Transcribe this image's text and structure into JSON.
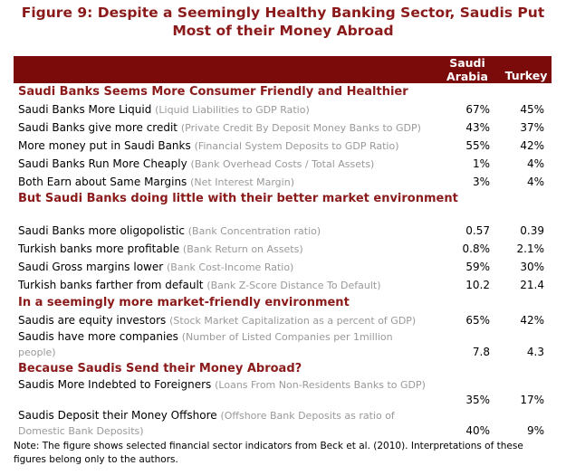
{
  "title": "Figure 9: Despite a Seemingly Healthy Banking Sector, Saudis Put Most of their Money Abroad",
  "columns": [
    "Saudi Arabia",
    "Turkey"
  ],
  "sections": [
    {
      "heading": "Saudi Banks Seems More Consumer Friendly and Healthier",
      "rows": [
        {
          "label": "Saudi Banks More Liquid",
          "note": "(Liquid Liabilities to GDP Ratio)",
          "saudi": "67%",
          "turkey": "45%"
        },
        {
          "label": "Saudi Banks give more credit",
          "note": "(Private Credit By Deposit Money Banks to GDP)",
          "saudi": "43%",
          "turkey": "37%"
        },
        {
          "label": "More money put in Saudi Banks",
          "note": "(Financial System Deposits to GDP Ratio)",
          "saudi": "55%",
          "turkey": "42%"
        },
        {
          "label": "Saudi Banks Run More Cheaply",
          "note": "(Bank Overhead Costs / Total Assets)",
          "saudi": "1%",
          "turkey": "4%"
        },
        {
          "label": "Both Earn about Same Margins",
          "note": "(Net Interest Margin)",
          "saudi": "3%",
          "turkey": "4%"
        }
      ]
    },
    {
      "heading": "But Saudi Banks doing little with their better market environment",
      "rows": [
        {
          "label": "Saudi Banks more oligopolistic",
          "note": "(Bank Concentration ratio)",
          "saudi": "0.57",
          "turkey": "0.39"
        },
        {
          "label": "Turkish banks more profitable",
          "note": "(Bank Return on Assets)",
          "saudi": "0.8%",
          "turkey": "2.1%"
        },
        {
          "label": "Saudi Gross margins lower",
          "note": "(Bank Cost-Income Ratio)",
          "saudi": "59%",
          "turkey": "30%"
        },
        {
          "label": "Turkish banks farther from default",
          "note": "(Bank Z-Score Distance To Default)",
          "saudi": "10.2",
          "turkey": "21.4"
        }
      ]
    },
    {
      "heading": "In a seemingly more market-friendly environment",
      "rows": [
        {
          "label": "Saudis are equity investors",
          "note": "(Stock Market Capitalization as a percent of GDP)",
          "saudi": "65%",
          "turkey": "42%"
        },
        {
          "label": "Saudis have more companies",
          "note": "(Number of Listed Companies per 1million people)",
          "saudi": "7.8",
          "turkey": "4.3"
        }
      ]
    },
    {
      "heading": "Because Saudis Send their Money Abroad?",
      "rows": [
        {
          "label": "Saudis More Indebted to Foreigners",
          "note": "(Loans From Non-Residents Banks to GDP)",
          "saudi": "35%",
          "turkey": "17%"
        },
        {
          "label": "Saudis Deposit their Money Offshore",
          "note": "(Offshore Bank Deposits as ratio of Domestic Bank Deposits)",
          "saudi": "40%",
          "turkey": "9%"
        }
      ]
    }
  ],
  "footnote": "Note: The figure shows selected financial sector indicators from Beck et al. (2010). Interpretations of these figures belong only to the authors."
}
